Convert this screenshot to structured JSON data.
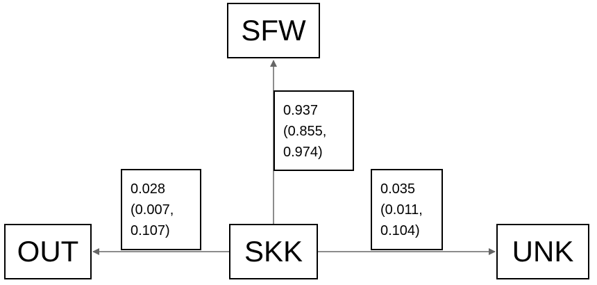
{
  "colors": {
    "edge": "#666666",
    "border": "#000000",
    "background": "#ffffff"
  },
  "nodes": {
    "center": "SKK",
    "top": "SFW",
    "left": "OUT",
    "right": "UNK"
  },
  "edges": {
    "to_top": {
      "value": "0.937",
      "ci_low": "(0.855,",
      "ci_high": "0.974)"
    },
    "to_left": {
      "value": "0.028",
      "ci_low": "(0.007,",
      "ci_high": "0.107)"
    },
    "to_right": {
      "value": "0.035",
      "ci_low": "(0.011,",
      "ci_high": "0.104)"
    }
  }
}
